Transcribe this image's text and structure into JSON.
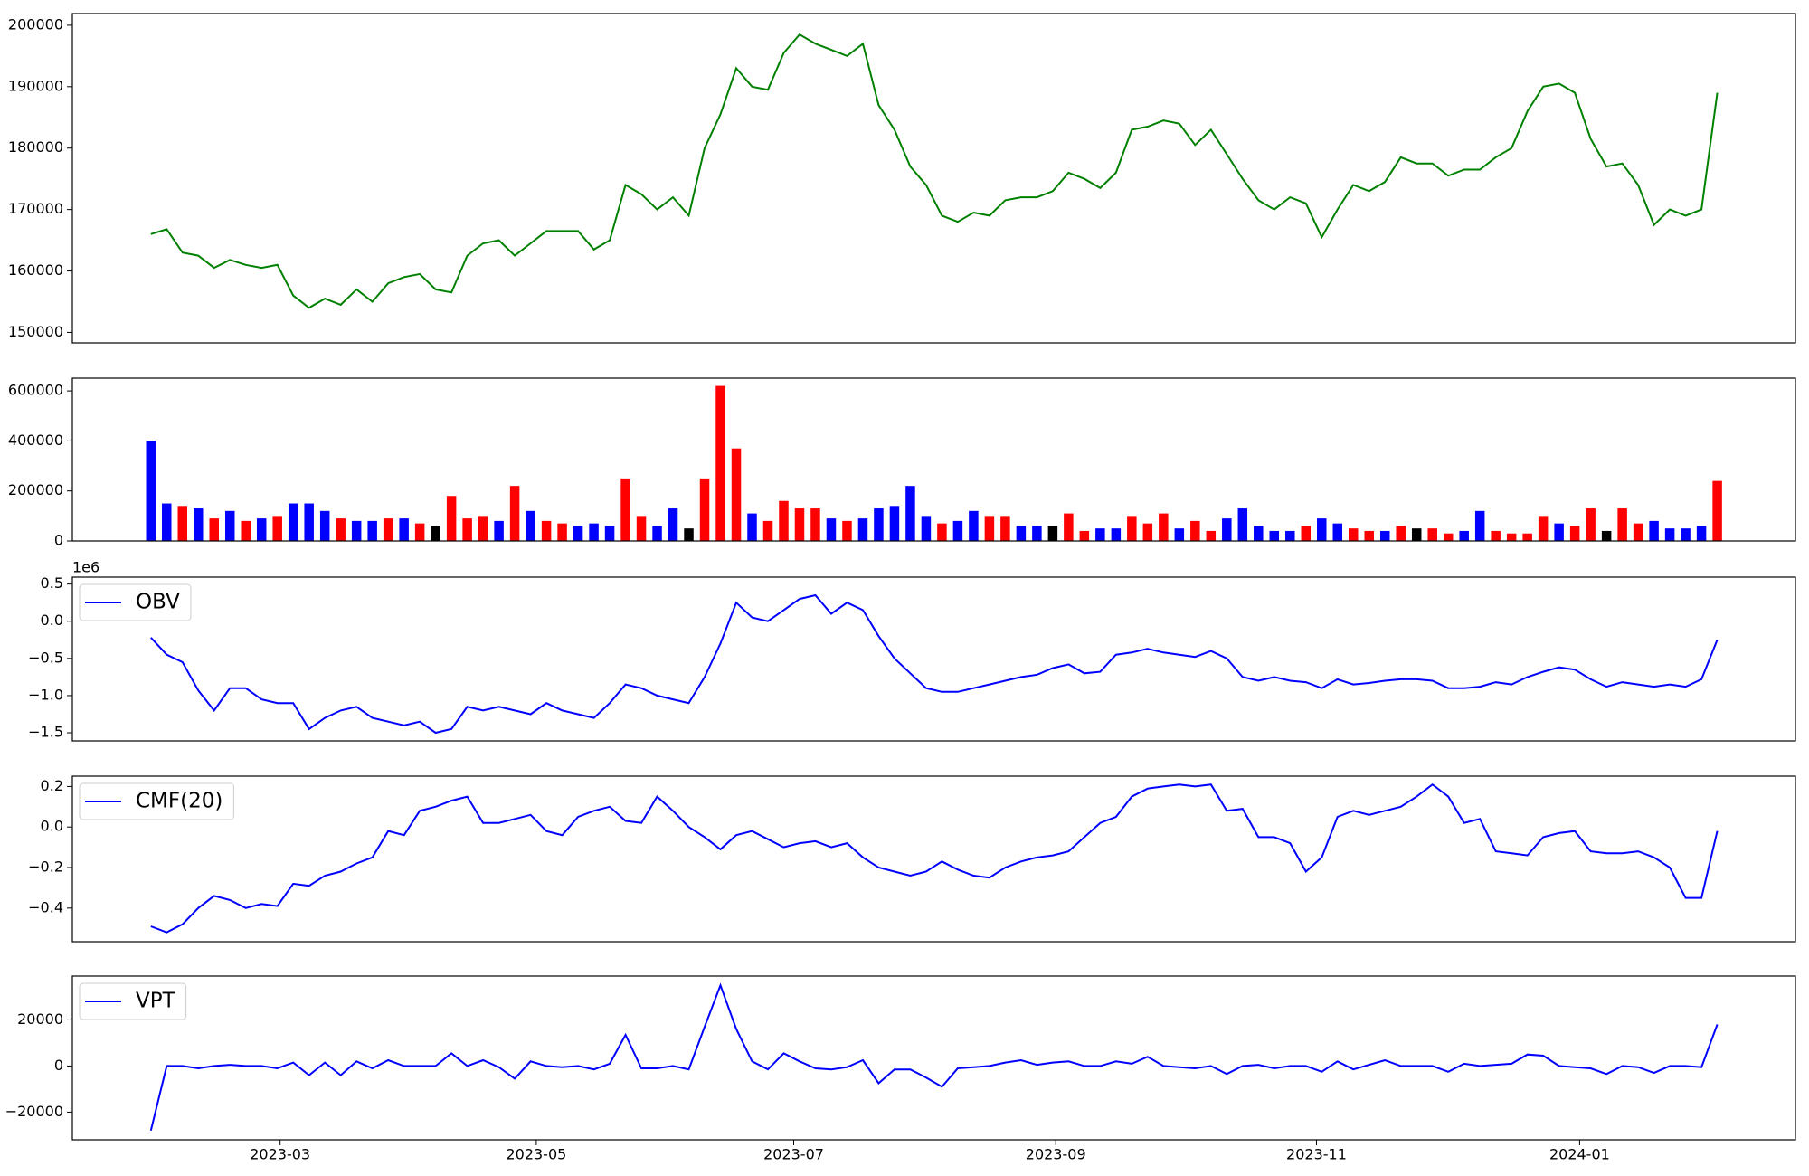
{
  "chart_data": [
    {
      "type": "line",
      "xlim": [
        -4.96,
        103.94
      ],
      "ylim": [
        148300,
        201900
      ],
      "yticks": [
        150000,
        160000,
        170000,
        180000,
        190000,
        200000
      ],
      "series": [
        {
          "color": "#008000",
          "values": [
            166000,
            166800,
            163000,
            162500,
            160500,
            161800,
            161000,
            160500,
            161000,
            156000,
            154000,
            155500,
            154500,
            157000,
            155000,
            158000,
            159000,
            159500,
            157000,
            156500,
            162500,
            164500,
            165000,
            162500,
            164500,
            166500,
            166500,
            166500,
            163500,
            165000,
            174000,
            172500,
            170000,
            172000,
            169000,
            180000,
            185500,
            193000,
            190000,
            189500,
            195500,
            198500,
            197000,
            196000,
            195000,
            197000,
            187000,
            183000,
            177000,
            174000,
            169000,
            168000,
            169500,
            169000,
            171500,
            172000,
            172000,
            173000,
            176000,
            175000,
            173500,
            176000,
            183000,
            183500,
            184500,
            184000,
            180500,
            183000,
            179000,
            175000,
            171500,
            170000,
            172000,
            171000,
            165500,
            170000,
            174000,
            173000,
            174500,
            178500,
            177500,
            177500,
            175500,
            176500,
            176500,
            178500,
            180000,
            186000,
            190000,
            190500,
            189000,
            181500,
            177000,
            177500,
            174000,
            167500,
            170000,
            169000,
            170000,
            189000
          ]
        }
      ]
    },
    {
      "type": "bar",
      "xlim": [
        -4.96,
        103.94
      ],
      "ylim": [
        0,
        651000
      ],
      "yticks": [
        0,
        200000,
        400000,
        600000
      ],
      "series": [
        {
          "values": [
            400000,
            150000,
            140000,
            130000,
            90000,
            120000,
            80000,
            90000,
            100000,
            150000,
            150000,
            120000,
            90000,
            80000,
            80000,
            90000,
            90000,
            70000,
            60000,
            180000,
            90000,
            100000,
            80000,
            220000,
            120000,
            80000,
            70000,
            60000,
            70000,
            60000,
            250000,
            100000,
            60000,
            130000,
            50000,
            250000,
            620000,
            370000,
            110000,
            80000,
            160000,
            130000,
            130000,
            90000,
            80000,
            90000,
            130000,
            140000,
            220000,
            100000,
            70000,
            80000,
            120000,
            100000,
            100000,
            60000,
            60000,
            60000,
            110000,
            40000,
            50000,
            50000,
            100000,
            70000,
            110000,
            50000,
            80000,
            40000,
            90000,
            130000,
            60000,
            40000,
            40000,
            60000,
            90000,
            70000,
            50000,
            40000,
            40000,
            60000,
            50000,
            50000,
            30000,
            40000,
            120000,
            40000,
            30000,
            30000,
            100000,
            70000,
            60000,
            130000,
            40000,
            130000,
            70000,
            80000,
            50000,
            50000,
            60000,
            240000
          ],
          "colors": [
            "blue",
            "blue",
            "red",
            "blue",
            "red",
            "blue",
            "red",
            "blue",
            "red",
            "blue",
            "blue",
            "blue",
            "red",
            "blue",
            "blue",
            "red",
            "blue",
            "red",
            "black",
            "red",
            "red",
            "red",
            "blue",
            "red",
            "blue",
            "red",
            "red",
            "blue",
            "blue",
            "blue",
            "red",
            "red",
            "blue",
            "blue",
            "black",
            "red",
            "red",
            "red",
            "blue",
            "red",
            "red",
            "red",
            "red",
            "blue",
            "red",
            "blue",
            "blue",
            "blue",
            "blue",
            "blue",
            "red",
            "blue",
            "blue",
            "red",
            "red",
            "blue",
            "blue",
            "black",
            "red",
            "red",
            "blue",
            "blue",
            "red",
            "red",
            "red",
            "blue",
            "red",
            "red",
            "blue",
            "blue",
            "blue",
            "blue",
            "blue",
            "red",
            "blue",
            "blue",
            "red",
            "red",
            "blue",
            "red",
            "black",
            "red",
            "red",
            "blue",
            "blue",
            "red",
            "red",
            "red",
            "red",
            "blue",
            "red",
            "red",
            "black",
            "red",
            "red",
            "blue",
            "blue",
            "blue",
            "blue",
            "red"
          ]
        }
      ]
    },
    {
      "type": "line",
      "xlim": [
        -4.96,
        103.94
      ],
      "ylim": [
        -1.609,
        0.593
      ],
      "offset_text": "1e6",
      "legend": "upper left",
      "yticks": [
        {
          "value": -1.5,
          "label": "−1.5"
        },
        {
          "value": -1,
          "label": "−1.0"
        },
        {
          "value": -0.5,
          "label": "−0.5"
        },
        {
          "value": 0,
          "label": "0.0"
        },
        0.5
      ],
      "series": [
        {
          "name": "OBV",
          "color": "#0000ff",
          "values": [
            -0.22,
            -0.45,
            -0.55,
            -0.93,
            -1.2,
            -0.9,
            -0.9,
            -1.05,
            -1.1,
            -1.1,
            -1.45,
            -1.3,
            -1.2,
            -1.15,
            -1.3,
            -1.35,
            -1.4,
            -1.35,
            -1.5,
            -1.45,
            -1.15,
            -1.2,
            -1.15,
            -1.2,
            -1.25,
            -1.1,
            -1.2,
            -1.25,
            -1.3,
            -1.1,
            -0.85,
            -0.9,
            -1.0,
            -1.05,
            -1.1,
            -0.75,
            -0.3,
            0.25,
            0.05,
            0.0,
            0.15,
            0.3,
            0.35,
            0.1,
            0.25,
            0.15,
            -0.2,
            -0.5,
            -0.7,
            -0.9,
            -0.95,
            -0.95,
            -0.9,
            -0.85,
            -0.8,
            -0.75,
            -0.72,
            -0.63,
            -0.58,
            -0.7,
            -0.68,
            -0.45,
            -0.42,
            -0.37,
            -0.42,
            -0.45,
            -0.48,
            -0.4,
            -0.5,
            -0.75,
            -0.8,
            -0.75,
            -0.8,
            -0.82,
            -0.9,
            -0.78,
            -0.85,
            -0.83,
            -0.8,
            -0.78,
            -0.78,
            -0.8,
            -0.9,
            -0.9,
            -0.88,
            -0.82,
            -0.85,
            -0.75,
            -0.68,
            -0.62,
            -0.65,
            -0.78,
            -0.88,
            -0.82,
            -0.85,
            -0.88,
            -0.85,
            -0.88,
            -0.78,
            -0.25
          ]
        }
      ]
    },
    {
      "type": "line",
      "xlim": [
        -4.96,
        103.94
      ],
      "ylim": [
        -0.566,
        0.251
      ],
      "legend": "upper left",
      "yticks": [
        {
          "value": -0.4,
          "label": "−0.4"
        },
        {
          "value": -0.2,
          "label": "−0.2"
        },
        {
          "value": 0,
          "label": "0.0"
        },
        0.2
      ],
      "series": [
        {
          "name": "CMF(20)",
          "color": "#0000ff",
          "values": [
            -0.49,
            -0.52,
            -0.48,
            -0.4,
            -0.34,
            -0.36,
            -0.4,
            -0.38,
            -0.39,
            -0.28,
            -0.29,
            -0.24,
            -0.22,
            -0.18,
            -0.15,
            -0.02,
            -0.04,
            0.08,
            0.1,
            0.13,
            0.15,
            0.02,
            0.02,
            0.04,
            0.06,
            -0.02,
            -0.04,
            0.05,
            0.08,
            0.1,
            0.03,
            0.02,
            0.15,
            0.08,
            0.0,
            -0.05,
            -0.11,
            -0.04,
            -0.02,
            -0.06,
            -0.1,
            -0.08,
            -0.07,
            -0.1,
            -0.08,
            -0.15,
            -0.2,
            -0.22,
            -0.24,
            -0.22,
            -0.17,
            -0.21,
            -0.24,
            -0.25,
            -0.2,
            -0.17,
            -0.15,
            -0.14,
            -0.12,
            -0.05,
            0.02,
            0.05,
            0.15,
            0.19,
            0.2,
            0.21,
            0.2,
            0.21,
            0.08,
            0.09,
            -0.05,
            -0.05,
            -0.08,
            -0.22,
            -0.15,
            0.05,
            0.08,
            0.06,
            0.08,
            0.1,
            0.15,
            0.21,
            0.15,
            0.02,
            0.04,
            -0.12,
            -0.13,
            -0.14,
            -0.05,
            -0.03,
            -0.02,
            -0.12,
            -0.13,
            -0.13,
            -0.12,
            -0.15,
            -0.2,
            -0.35,
            -0.35,
            -0.02
          ]
        }
      ]
    },
    {
      "type": "line",
      "xlim": [
        -4.96,
        103.94
      ],
      "ylim": [
        -32000,
        39000
      ],
      "legend": "upper left",
      "yticks": [
        {
          "value": -20000,
          "label": "−20000"
        },
        0,
        20000
      ],
      "xticks": [
        {
          "value": 8.17,
          "label": "2023-03"
        },
        {
          "value": 24.36,
          "label": "2023-05"
        },
        {
          "value": 40.63,
          "label": "2023-07"
        },
        {
          "value": 57.19,
          "label": "2023-09"
        },
        {
          "value": 73.67,
          "label": "2023-11"
        },
        {
          "value": 90.3,
          "label": "2024-01"
        }
      ],
      "series": [
        {
          "name": "VPT",
          "color": "#0000ff",
          "values": [
            -28000,
            0,
            0,
            -1000,
            0,
            500,
            0,
            0,
            -1000,
            1500,
            -4000,
            1500,
            -4000,
            2000,
            -1000,
            2500,
            0,
            0,
            0,
            5500,
            0,
            2500,
            -500,
            -5500,
            2000,
            0,
            -500,
            0,
            -1500,
            1000,
            13500,
            -1000,
            -1000,
            0,
            -1500,
            17000,
            35000,
            16000,
            2000,
            -1500,
            5500,
            2000,
            -1000,
            -1500,
            -500,
            2500,
            -7500,
            -1500,
            -1500,
            -5000,
            -9000,
            -1000,
            -500,
            0,
            1500,
            2500,
            500,
            1500,
            2000,
            0,
            0,
            2000,
            1000,
            4000,
            0,
            -500,
            -1000,
            0,
            -3500,
            0,
            500,
            -1000,
            0,
            0,
            -2500,
            2000,
            -1500,
            500,
            2500,
            0,
            0,
            0,
            -2500,
            1000,
            0,
            500,
            1000,
            5000,
            4500,
            0,
            -500,
            -1000,
            -3500,
            0,
            -500,
            -3000,
            0,
            0,
            -500,
            18000
          ]
        }
      ]
    }
  ]
}
